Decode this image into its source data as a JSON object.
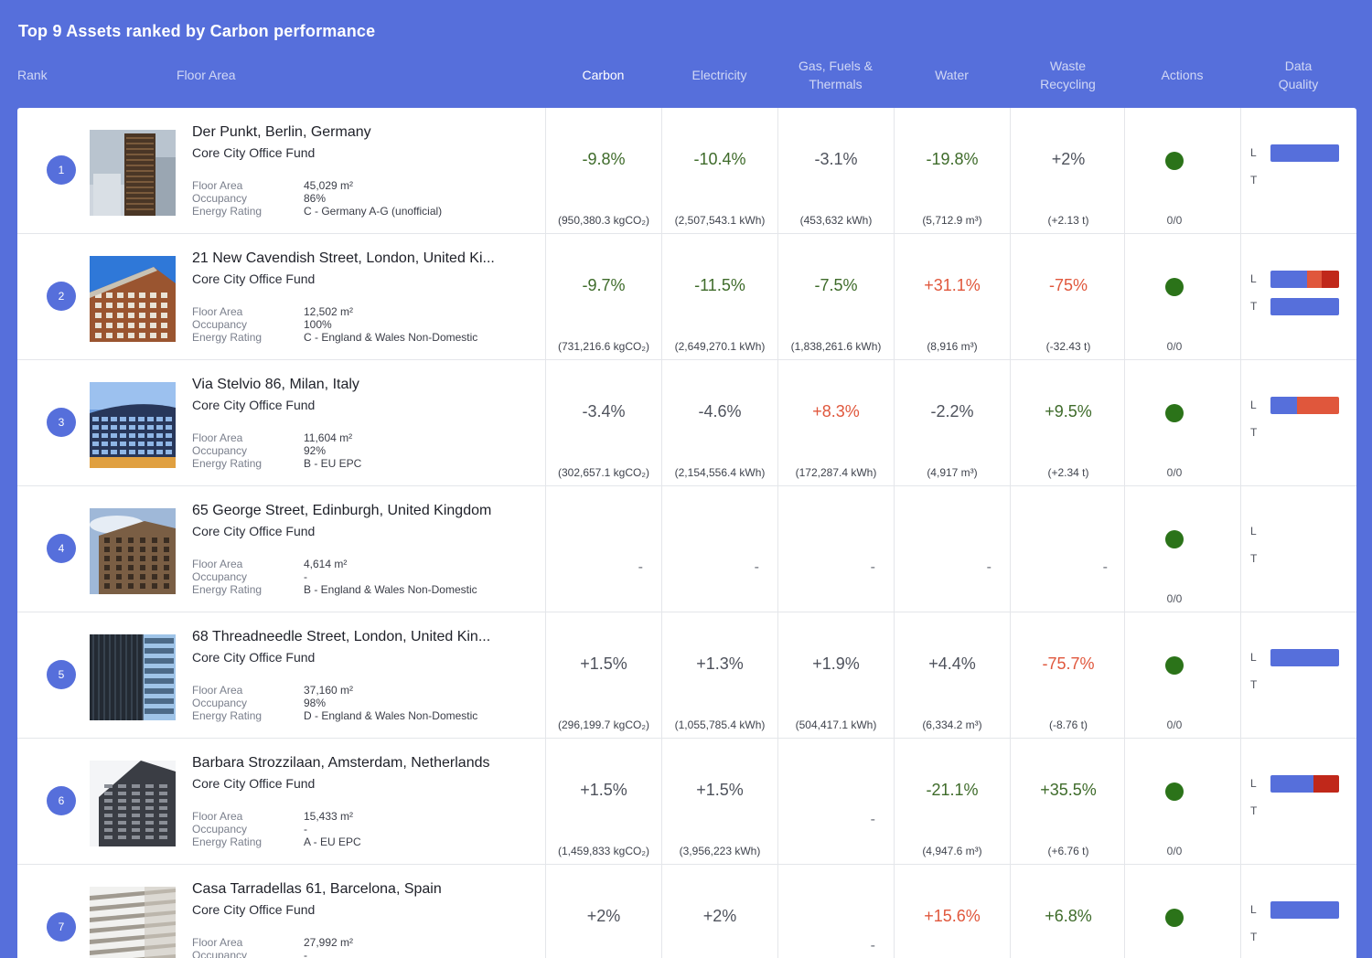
{
  "page": {
    "title": "Top 9 Assets ranked by Carbon performance"
  },
  "columns": {
    "rank": "Rank",
    "floor_area": "Floor Area",
    "carbon": "Carbon",
    "electricity": "Electricity",
    "gas_line1": "Gas, Fuels &",
    "gas_line2": "Thermals",
    "water": "Water",
    "waste_line1": "Waste",
    "waste_line2": "Recycling",
    "actions": "Actions",
    "dq_line1": "Data",
    "dq_line2": "Quality"
  },
  "labels": {
    "floor_area": "Floor Area",
    "occupancy": "Occupancy",
    "energy_rating": "Energy Rating",
    "landlord": "L",
    "tenant": "T"
  },
  "colors": {
    "green": "#3e6b2a",
    "red": "#e0573c",
    "blue": "#566fdb",
    "dark_red": "#c0281a",
    "action_dot": "#2b7319"
  },
  "assets": [
    {
      "rank": "1",
      "name": "Der Punkt, Berlin, Germany",
      "fund": "Core City Office Fund",
      "floor_area": "45,029 m²",
      "occupancy": "86%",
      "energy_rating": "C - Germany A-G (unofficial)",
      "image_icon": "tower-building-photo",
      "carbon": {
        "pct": "-9.8%",
        "abs": "(950,380.3 kgCO₂)",
        "tone": "green"
      },
      "electricity": {
        "pct": "-10.4%",
        "abs": "(2,507,543.1 kWh)",
        "tone": "green"
      },
      "gas": {
        "pct": "-3.1%",
        "abs": "(453,632 kWh)",
        "tone": "gray"
      },
      "water": {
        "pct": "-19.8%",
        "abs": "(5,712.9 m³)",
        "tone": "green"
      },
      "waste": {
        "pct": "+2%",
        "abs": "(+2.13 t)",
        "tone": "gray"
      },
      "actions": "0/0",
      "landlord_bar": [
        [
          "#566fdb",
          1
        ]
      ],
      "tenant_bar": []
    },
    {
      "rank": "2",
      "name": "21 New Cavendish Street, London, United Ki...",
      "fund": "Core City Office Fund",
      "floor_area": "12,502 m²",
      "occupancy": "100%",
      "energy_rating": "C - England & Wales Non-Domestic",
      "image_icon": "brick-building-photo",
      "carbon": {
        "pct": "-9.7%",
        "abs": "(731,216.6 kgCO₂)",
        "tone": "green"
      },
      "electricity": {
        "pct": "-11.5%",
        "abs": "(2,649,270.1 kWh)",
        "tone": "green"
      },
      "gas": {
        "pct": "-7.5%",
        "abs": "(1,838,261.6 kWh)",
        "tone": "green"
      },
      "water": {
        "pct": "+31.1%",
        "abs": "(8,916 m³)",
        "tone": "red"
      },
      "waste": {
        "pct": "-75%",
        "abs": "(-32.43 t)",
        "tone": "red"
      },
      "actions": "0/0",
      "landlord_bar": [
        [
          "#566fdb",
          0.53
        ],
        [
          "#e0573c",
          0.22
        ],
        [
          "#c0281a",
          0.25
        ]
      ],
      "tenant_bar": [
        [
          "#566fdb",
          1
        ]
      ]
    },
    {
      "rank": "3",
      "name": "Via Stelvio 86, Milan, Italy",
      "fund": "Core City Office Fund",
      "floor_area": "11,604 m²",
      "occupancy": "92%",
      "energy_rating": "B - EU EPC",
      "image_icon": "glass-building-photo",
      "carbon": {
        "pct": "-3.4%",
        "abs": "(302,657.1 kgCO₂)",
        "tone": "gray"
      },
      "electricity": {
        "pct": "-4.6%",
        "abs": "(2,154,556.4 kWh)",
        "tone": "gray"
      },
      "gas": {
        "pct": "+8.3%",
        "abs": "(172,287.4 kWh)",
        "tone": "red"
      },
      "water": {
        "pct": "-2.2%",
        "abs": "(4,917 m³)",
        "tone": "gray"
      },
      "waste": {
        "pct": "+9.5%",
        "abs": "(+2.34 t)",
        "tone": "green"
      },
      "actions": "0/0",
      "landlord_bar": [
        [
          "#566fdb",
          0.38
        ],
        [
          "#e0573c",
          0.62
        ]
      ],
      "tenant_bar": []
    },
    {
      "rank": "4",
      "name": "65 George Street, Edinburgh, United Kingdom",
      "fund": "Core City Office Fund",
      "floor_area": "4,614 m²",
      "occupancy": "-",
      "energy_rating": "B - England & Wales Non-Domestic",
      "image_icon": "sandstone-building-photo",
      "carbon": null,
      "electricity": null,
      "gas": null,
      "water": null,
      "waste": null,
      "actions": "0/0",
      "landlord_bar": [],
      "tenant_bar": []
    },
    {
      "rank": "5",
      "name": "68 Threadneedle Street, London, United Kin...",
      "fund": "Core City Office Fund",
      "floor_area": "37,160 m²",
      "occupancy": "98%",
      "energy_rating": "D - England & Wales Non-Domestic",
      "image_icon": "modern-office-photo",
      "carbon": {
        "pct": "+1.5%",
        "abs": "(296,199.7 kgCO₂)",
        "tone": "gray"
      },
      "electricity": {
        "pct": "+1.3%",
        "abs": "(1,055,785.4 kWh)",
        "tone": "gray"
      },
      "gas": {
        "pct": "+1.9%",
        "abs": "(504,417.1 kWh)",
        "tone": "gray"
      },
      "water": {
        "pct": "+4.4%",
        "abs": "(6,334.2 m³)",
        "tone": "gray"
      },
      "waste": {
        "pct": "-75.7%",
        "abs": "(-8.76 t)",
        "tone": "red"
      },
      "actions": "0/0",
      "landlord_bar": [
        [
          "#566fdb",
          1
        ]
      ],
      "tenant_bar": []
    },
    {
      "rank": "6",
      "name": "Barbara Strozzilaan, Amsterdam, Netherlands",
      "fund": "Core City Office Fund",
      "floor_area": "15,433 m²",
      "occupancy": "-",
      "energy_rating": "A - EU EPC",
      "image_icon": "dark-tower-photo",
      "carbon": {
        "pct": "+1.5%",
        "abs": "(1,459,833 kgCO₂)",
        "tone": "gray"
      },
      "electricity": {
        "pct": "+1.5%",
        "abs": "(3,956,223 kWh)",
        "tone": "gray"
      },
      "gas": null,
      "water": {
        "pct": "-21.1%",
        "abs": "(4,947.6 m³)",
        "tone": "green"
      },
      "waste": {
        "pct": "+35.5%",
        "abs": "(+6.76 t)",
        "tone": "green"
      },
      "actions": "0/0",
      "landlord_bar": [
        [
          "#566fdb",
          0.62
        ],
        [
          "#c0281a",
          0.38
        ]
      ],
      "tenant_bar": []
    },
    {
      "rank": "7",
      "name": "Casa Tarradellas 61, Barcelona, Spain",
      "fund": "Core City Office Fund",
      "floor_area": "27,992 m²",
      "occupancy": "-",
      "energy_rating": "",
      "image_icon": "white-facade-photo",
      "carbon": {
        "pct": "+2%",
        "abs": "",
        "tone": "gray"
      },
      "electricity": {
        "pct": "+2%",
        "abs": "",
        "tone": "gray"
      },
      "gas": null,
      "water": {
        "pct": "+15.6%",
        "abs": "",
        "tone": "red"
      },
      "waste": {
        "pct": "+6.8%",
        "abs": "",
        "tone": "green"
      },
      "actions": "",
      "landlord_bar": [
        [
          "#566fdb",
          1
        ]
      ],
      "tenant_bar": []
    }
  ]
}
